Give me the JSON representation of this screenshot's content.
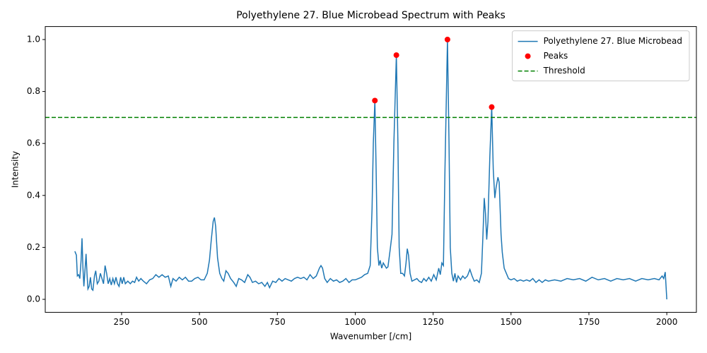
{
  "chart_data": {
    "type": "line",
    "title": "Polyethylene 27. Blue Microbead Spectrum with Peaks",
    "xlabel": "Wavenumber [/cm]",
    "ylabel": "Intensity",
    "xlim": [
      5,
      2095
    ],
    "ylim": [
      -0.05,
      1.05
    ],
    "xticks": [
      250,
      500,
      750,
      1000,
      1250,
      1500,
      1750,
      2000
    ],
    "yticks": [
      {
        "value": 0,
        "label": "0.0"
      },
      0.2,
      0.4,
      0.6,
      0.8,
      {
        "value": 1,
        "label": "1.0"
      }
    ],
    "grid": false,
    "legend": "upper right",
    "series": [
      {
        "name": "Polyethylene 27. Blue Microbead",
        "color": "#1f77b4",
        "type": "line",
        "x": [
          100,
          105,
          108,
          112,
          116,
          120,
          123,
          126,
          129,
          133,
          136,
          139,
          142,
          146,
          150,
          154,
          158,
          163,
          167,
          172,
          177,
          182,
          187,
          192,
          197,
          202,
          207,
          212,
          217,
          222,
          227,
          232,
          237,
          242,
          247,
          252,
          257,
          262,
          270,
          278,
          285,
          292,
          298,
          305,
          312,
          320,
          330,
          340,
          350,
          360,
          370,
          380,
          390,
          400,
          408,
          415,
          425,
          435,
          445,
          455,
          465,
          475,
          485,
          495,
          505,
          515,
          525,
          532,
          538,
          544,
          548,
          552,
          558,
          565,
          572,
          578,
          585,
          592,
          600,
          610,
          618,
          626,
          635,
          645,
          655,
          662,
          670,
          680,
          690,
          700,
          710,
          718,
          725,
          735,
          745,
          755,
          765,
          775,
          785,
          795,
          805,
          815,
          825,
          835,
          845,
          855,
          865,
          875,
          885,
          890,
          895,
          902,
          910,
          920,
          930,
          940,
          950,
          960,
          970,
          980,
          990,
          1000,
          1010,
          1020,
          1030,
          1040,
          1048,
          1054,
          1058,
          1063,
          1067,
          1071,
          1076,
          1080,
          1085,
          1090,
          1095,
          1100,
          1105,
          1112,
          1118,
          1124,
          1132,
          1137,
          1141,
          1146,
          1152,
          1158,
          1163,
          1167,
          1171,
          1176,
          1182,
          1190,
          1198,
          1205,
          1213,
          1220,
          1228,
          1236,
          1244,
          1252,
          1260,
          1268,
          1273,
          1278,
          1283,
          1288,
          1296,
          1301,
          1305,
          1310,
          1315,
          1320,
          1325,
          1330,
          1338,
          1345,
          1352,
          1360,
          1368,
          1375,
          1382,
          1390,
          1398,
          1405,
          1410,
          1414,
          1418,
          1422,
          1426,
          1432,
          1438,
          1443,
          1448,
          1452,
          1458,
          1462,
          1468,
          1472,
          1478,
          1485,
          1492,
          1500,
          1510,
          1520,
          1530,
          1540,
          1550,
          1560,
          1570,
          1580,
          1590,
          1600,
          1610,
          1620,
          1640,
          1660,
          1680,
          1700,
          1720,
          1740,
          1760,
          1780,
          1800,
          1820,
          1840,
          1860,
          1880,
          1900,
          1920,
          1940,
          1960,
          1975,
          1985,
          1990,
          1995,
          2000
        ],
        "values": [
          0.185,
          0.17,
          0.09,
          0.095,
          0.08,
          0.15,
          0.235,
          0.12,
          0.05,
          0.12,
          0.175,
          0.1,
          0.04,
          0.05,
          0.085,
          0.04,
          0.035,
          0.09,
          0.11,
          0.06,
          0.07,
          0.1,
          0.08,
          0.06,
          0.13,
          0.1,
          0.06,
          0.08,
          0.055,
          0.08,
          0.06,
          0.085,
          0.06,
          0.05,
          0.085,
          0.06,
          0.085,
          0.06,
          0.07,
          0.06,
          0.07,
          0.065,
          0.085,
          0.07,
          0.08,
          0.07,
          0.06,
          0.075,
          0.08,
          0.095,
          0.085,
          0.095,
          0.085,
          0.09,
          0.05,
          0.08,
          0.07,
          0.085,
          0.075,
          0.085,
          0.07,
          0.07,
          0.08,
          0.085,
          0.075,
          0.075,
          0.1,
          0.15,
          0.23,
          0.3,
          0.315,
          0.28,
          0.16,
          0.1,
          0.08,
          0.07,
          0.11,
          0.1,
          0.08,
          0.065,
          0.05,
          0.08,
          0.075,
          0.065,
          0.095,
          0.085,
          0.065,
          0.07,
          0.06,
          0.065,
          0.05,
          0.065,
          0.045,
          0.07,
          0.065,
          0.08,
          0.07,
          0.08,
          0.075,
          0.07,
          0.08,
          0.085,
          0.08,
          0.085,
          0.075,
          0.095,
          0.08,
          0.09,
          0.12,
          0.13,
          0.12,
          0.08,
          0.065,
          0.08,
          0.07,
          0.075,
          0.065,
          0.07,
          0.08,
          0.065,
          0.075,
          0.075,
          0.08,
          0.085,
          0.095,
          0.1,
          0.13,
          0.35,
          0.6,
          0.765,
          0.5,
          0.2,
          0.13,
          0.15,
          0.12,
          0.14,
          0.13,
          0.12,
          0.125,
          0.19,
          0.25,
          0.6,
          0.94,
          0.6,
          0.2,
          0.1,
          0.1,
          0.09,
          0.14,
          0.195,
          0.17,
          0.1,
          0.07,
          0.075,
          0.08,
          0.07,
          0.065,
          0.08,
          0.07,
          0.085,
          0.07,
          0.095,
          0.075,
          0.12,
          0.095,
          0.14,
          0.13,
          0.5,
          1.0,
          0.6,
          0.2,
          0.1,
          0.07,
          0.1,
          0.065,
          0.09,
          0.075,
          0.09,
          0.08,
          0.09,
          0.115,
          0.09,
          0.07,
          0.075,
          0.065,
          0.1,
          0.25,
          0.39,
          0.33,
          0.23,
          0.3,
          0.55,
          0.74,
          0.5,
          0.39,
          0.43,
          0.47,
          0.45,
          0.25,
          0.18,
          0.12,
          0.1,
          0.08,
          0.075,
          0.08,
          0.07,
          0.075,
          0.07,
          0.075,
          0.07,
          0.08,
          0.065,
          0.075,
          0.065,
          0.075,
          0.07,
          0.075,
          0.07,
          0.08,
          0.075,
          0.08,
          0.07,
          0.085,
          0.075,
          0.08,
          0.07,
          0.08,
          0.075,
          0.08,
          0.07,
          0.08,
          0.075,
          0.08,
          0.075,
          0.09,
          0.08,
          0.105,
          0.0
        ]
      },
      {
        "name": "Peaks",
        "color": "#ff0000",
        "type": "scatter",
        "x": [
          1063,
          1132,
          1296,
          1438
        ],
        "values": [
          0.765,
          0.94,
          1.0,
          0.74
        ]
      }
    ],
    "hlines": [
      {
        "name": "Threshold",
        "value": 0.7,
        "color": "#008000",
        "style": "dashed"
      }
    ]
  }
}
